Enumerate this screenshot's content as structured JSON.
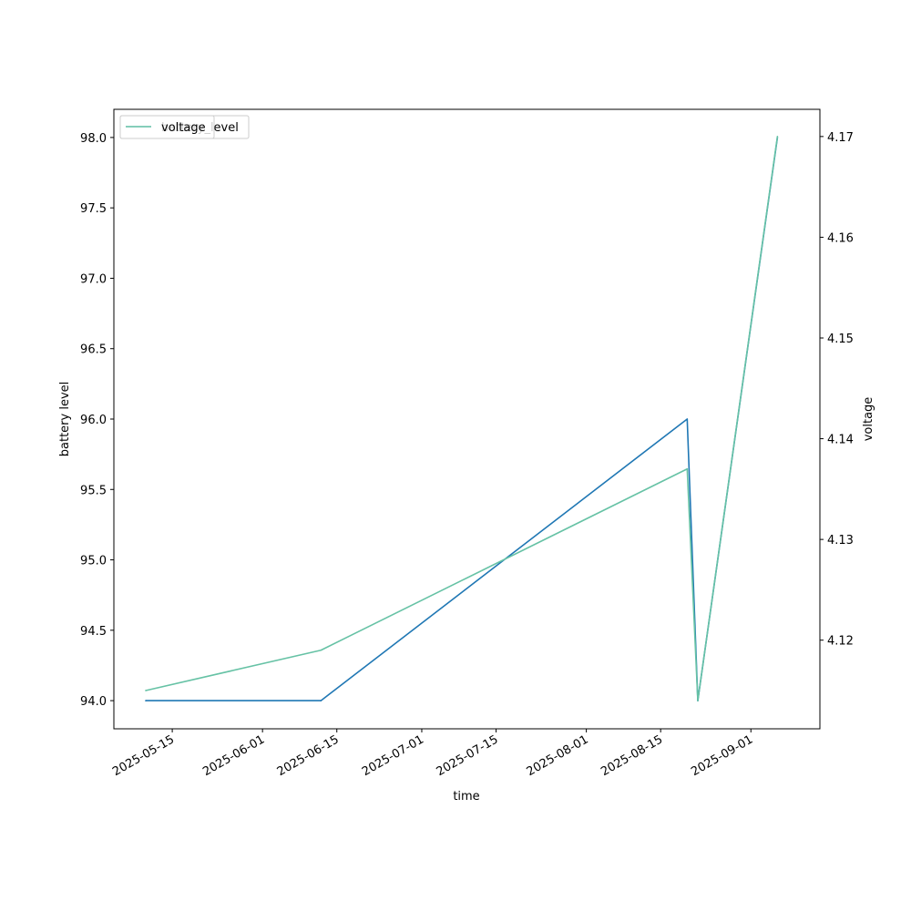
{
  "chart_data": {
    "type": "line",
    "xlabel": "time",
    "ylabel": "battery level",
    "ylabel_right": "voltage",
    "x_ticks": [
      "2025-05-15",
      "2025-06-01",
      "2025-06-15",
      "2025-07-01",
      "2025-07-15",
      "2025-08-01",
      "2025-08-15",
      "2025-09-01"
    ],
    "y_left_ticks": [
      94.0,
      94.5,
      95.0,
      95.5,
      96.0,
      96.5,
      97.0,
      97.5,
      98.0
    ],
    "y_right_ticks": [
      4.12,
      4.13,
      4.14,
      4.15,
      4.16,
      4.17
    ],
    "xlim": [
      "2025-05-04",
      "2025-09-14"
    ],
    "ylim_left": [
      93.8,
      98.2
    ],
    "ylim_right": [
      4.1112,
      4.1727
    ],
    "legend": {
      "placement": "top-left",
      "entries": [
        "battery_level",
        "voltage"
      ]
    },
    "grid": false,
    "series": [
      {
        "name": "battery_level",
        "axis": "left",
        "color": "#1f77b4",
        "x": [
          "2025-05-10",
          "2025-06-12",
          "2025-08-20",
          "2025-08-22",
          "2025-09-06"
        ],
        "values": [
          94.0,
          94.0,
          96.0,
          94.0,
          98.0
        ]
      },
      {
        "name": "voltage",
        "axis": "right",
        "color": "#66c2a5",
        "x": [
          "2025-05-10",
          "2025-06-12",
          "2025-08-20",
          "2025-08-22",
          "2025-09-06"
        ],
        "values": [
          4.115,
          4.119,
          4.137,
          4.114,
          4.17
        ]
      }
    ]
  }
}
